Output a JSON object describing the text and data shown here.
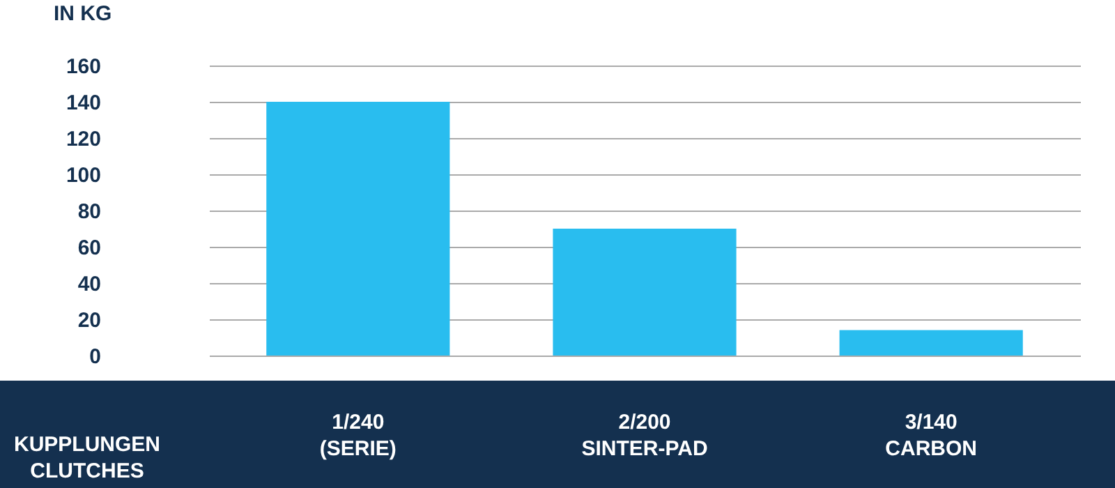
{
  "chart_data": {
    "type": "bar",
    "ylabel": "IN KG",
    "xlabel": "KUPPLUNGEN\nCLUTCHES",
    "categories": [
      "1/240\n(SERIE)",
      "2/200\nSINTER-PAD",
      "3/140\nCARBON"
    ],
    "values": [
      140,
      70,
      14
    ],
    "color": "#29bdef",
    "ylim": [
      0,
      160
    ],
    "yticks": [
      0,
      20,
      40,
      60,
      80,
      100,
      120,
      140,
      160
    ],
    "grid": "y"
  }
}
